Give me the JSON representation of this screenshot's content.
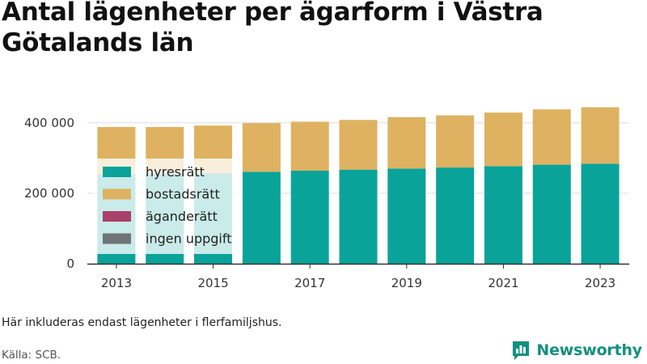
{
  "title": "Antal lägenheter per ägarform i Västra Götalands län",
  "note": "Här inkluderas endast lägenheter i flerfamiljshus.",
  "source": "Källa: SCB.",
  "brand": {
    "name": "Newsworthy",
    "icon": "bar-chart-speech-icon",
    "color": "#14907f"
  },
  "chart_data": {
    "type": "bar",
    "stacked": true,
    "x": [
      2013,
      2014,
      2015,
      2016,
      2017,
      2018,
      2019,
      2020,
      2021,
      2022,
      2023
    ],
    "x_tick_labels": [
      "2013",
      "2015",
      "2017",
      "2019",
      "2021",
      "2023"
    ],
    "y_tick_values": [
      0,
      200000,
      400000
    ],
    "y_tick_labels": [
      "0",
      "200 000",
      "400 000"
    ],
    "ylim": [
      0,
      450000
    ],
    "grid": true,
    "legend_position": "top-left inside plot",
    "series": [
      {
        "name": "hyresrätt",
        "color": "#0aa39a",
        "values": [
          253000,
          255000,
          256000,
          261000,
          264000,
          267000,
          270000,
          273000,
          277000,
          281000,
          284000
        ]
      },
      {
        "name": "bostadsrätt",
        "color": "#deb260",
        "values": [
          135000,
          133000,
          136000,
          138000,
          139000,
          141000,
          146000,
          148000,
          152000,
          157000,
          160000
        ]
      },
      {
        "name": "äganderätt",
        "color": "#a8416b",
        "values": [
          0,
          0,
          0,
          0,
          0,
          0,
          0,
          0,
          0,
          0,
          0
        ]
      },
      {
        "name": "ingen uppgift",
        "color": "#6e7478",
        "values": [
          0,
          0,
          0,
          0,
          0,
          0,
          0,
          0,
          0,
          0,
          0
        ]
      }
    ]
  }
}
